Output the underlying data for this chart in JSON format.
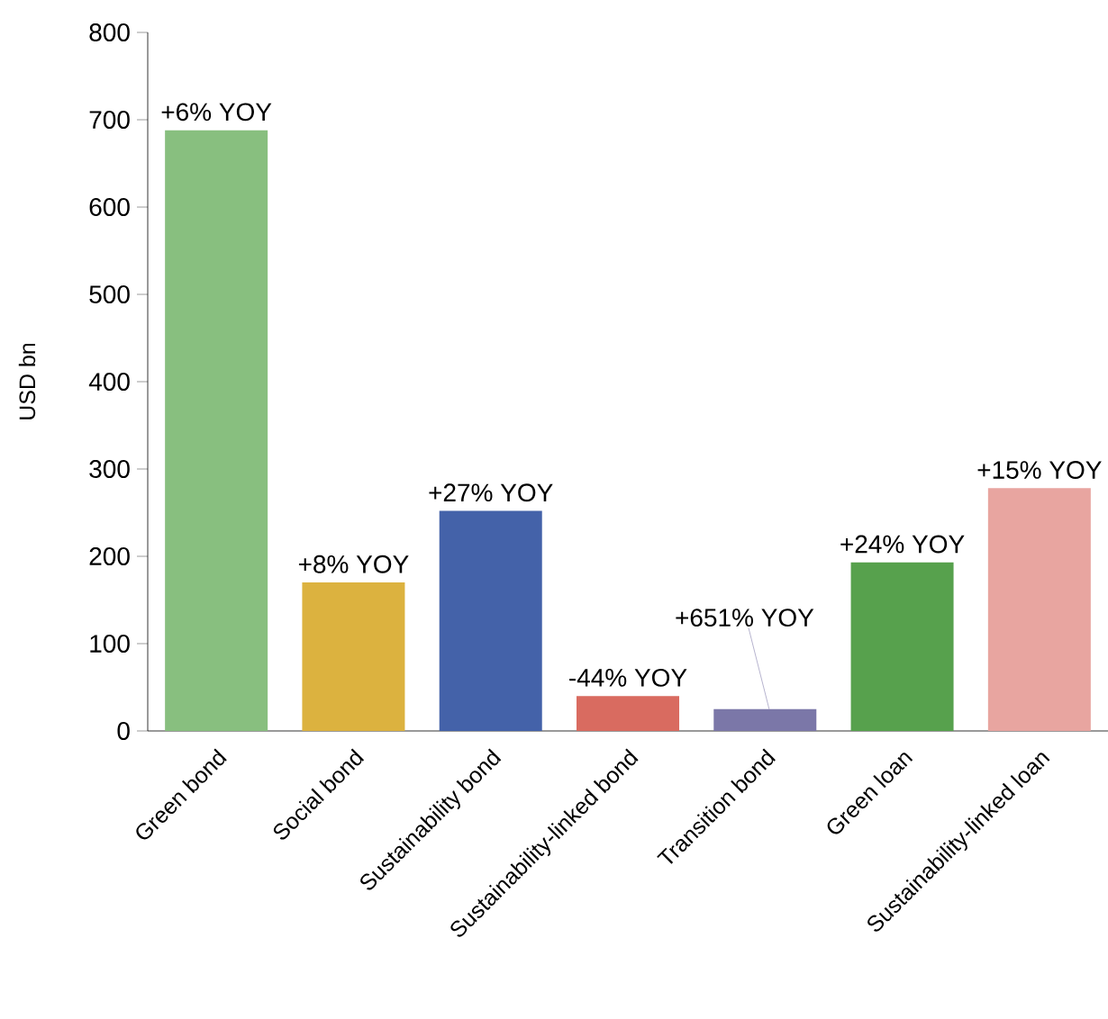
{
  "chart_data": {
    "type": "bar",
    "ylabel": "USD bn",
    "categories": [
      "Green bond",
      "Social bond",
      "Sustainability bond",
      "Sustainability-linked bond",
      "Transition bond",
      "Green loan",
      "Sustainability-linked loan"
    ],
    "values": [
      688,
      170,
      252,
      40,
      25,
      193,
      278
    ],
    "colors": [
      "#88bf7f",
      "#dcb23f",
      "#4462a9",
      "#d96b60",
      "#7b77a8",
      "#57a14d",
      "#e8a5a0"
    ],
    "ylim": [
      0,
      800
    ],
    "yticks": [
      0,
      100,
      200,
      300,
      400,
      500,
      600,
      700,
      800
    ],
    "grid": false,
    "annotations": [
      {
        "text": "+6% YOY",
        "x": "Green bond",
        "y": 688
      },
      {
        "text": "+8% YOY",
        "x": "Social bond",
        "y": 170
      },
      {
        "text": "+27% YOY",
        "x": "Sustainability bond",
        "y": 252
      },
      {
        "text": "-44% YOY",
        "x": "Sustainability-linked bond",
        "y": 40
      },
      {
        "text": "+651% YOY",
        "x": "Transition bond",
        "y": 25
      },
      {
        "text": "+24% YOY",
        "x": "Green loan",
        "y": 193
      },
      {
        "text": "+15% YOY",
        "x": "Sustainability-linked loan",
        "y": 278
      }
    ]
  }
}
